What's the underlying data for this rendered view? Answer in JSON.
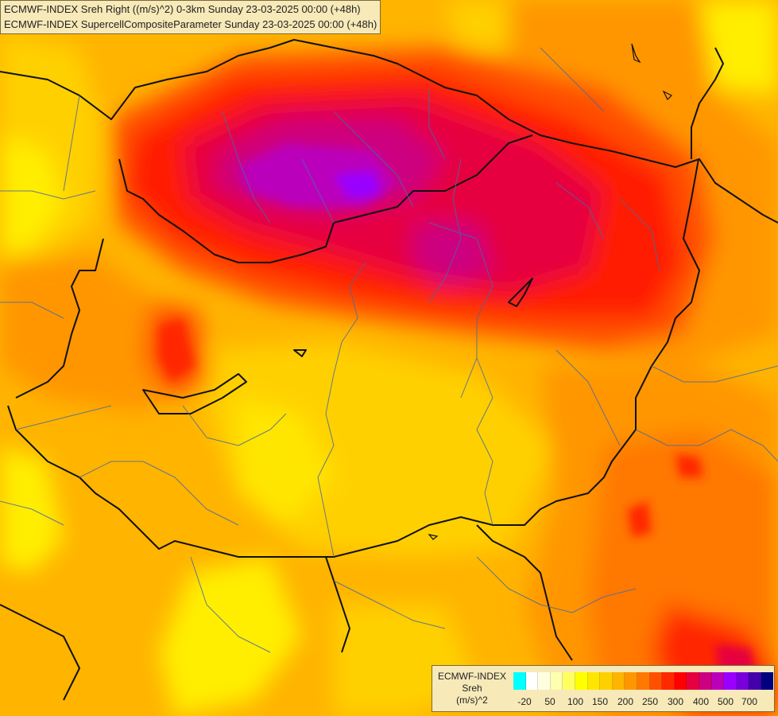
{
  "titles": {
    "line1": "ECMWF-INDEX Sreh Right ((m/s)^2) 0-3km Sunday 23-03-2025 00:00 (+48h)",
    "line2": "ECMWF-INDEX SupercellCompositeParameter Sunday 23-03-2025 00:00 (+48h)"
  },
  "legend": {
    "title_lines": [
      "ECMWF-INDEX",
      "Sreh",
      "(m/s)^2"
    ],
    "colors": [
      "#00ffff",
      "#ffffff",
      "#ffffe0",
      "#ffffb0",
      "#ffff60",
      "#ffff00",
      "#ffe600",
      "#ffd000",
      "#ffb400",
      "#ff9600",
      "#ff7800",
      "#ff5000",
      "#ff2800",
      "#ff0000",
      "#e60040",
      "#cc0080",
      "#bb00bb",
      "#9900ff",
      "#7700dd",
      "#4400aa",
      "#000080"
    ],
    "tick_labels": [
      "-20",
      "50",
      "100",
      "150",
      "200",
      "250",
      "300",
      "400",
      "500",
      "700"
    ]
  }
}
